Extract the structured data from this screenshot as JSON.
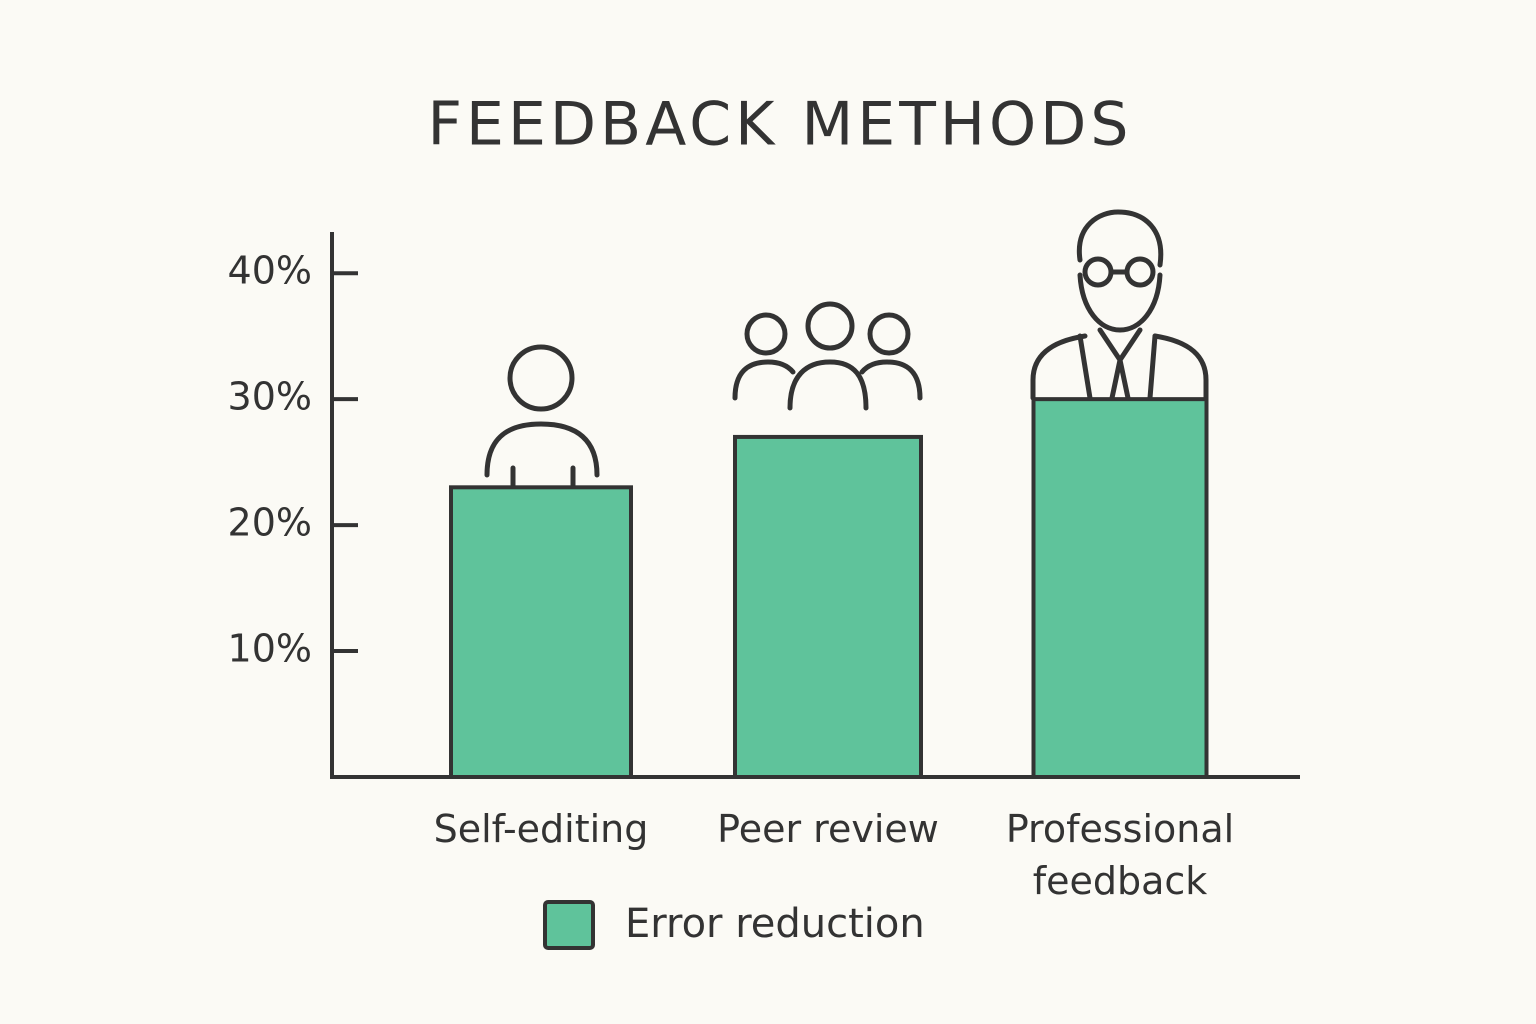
{
  "chart_data": {
    "type": "bar",
    "title": "FEEDBACK METHODS",
    "categories": [
      "Self-editing",
      "Peer review",
      "Professional feedback"
    ],
    "series": [
      {
        "name": "Error reduction",
        "color": "#5fc39b",
        "values": [
          23,
          27,
          30
        ]
      }
    ],
    "ylim": [
      0,
      42
    ],
    "yticks": [
      {
        "value": 10,
        "label": "10%"
      },
      {
        "value": 20,
        "label": "20%"
      },
      {
        "value": 30,
        "label": "30%"
      },
      {
        "value": 40,
        "label": "40%"
      }
    ]
  }
}
